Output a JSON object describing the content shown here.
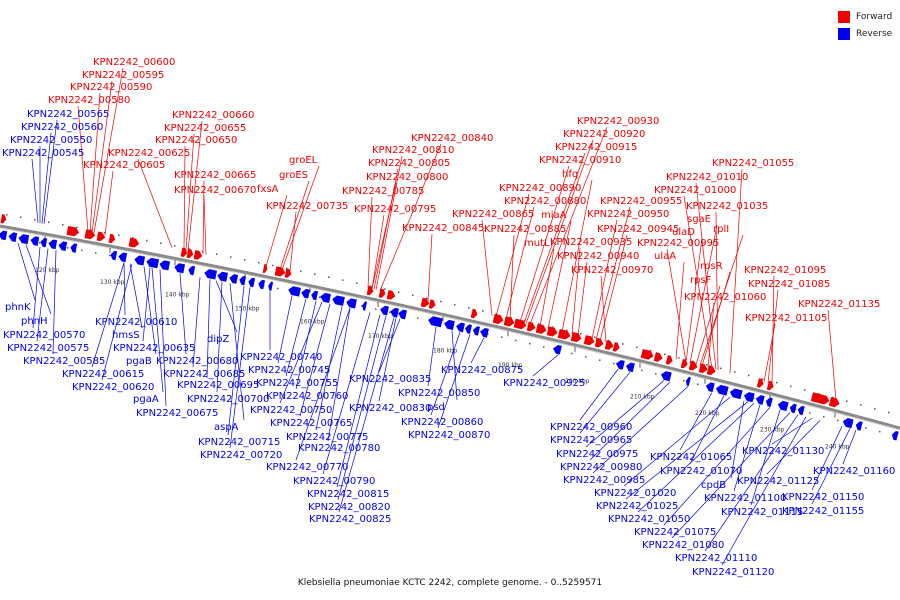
{
  "legend": [
    {
      "label": "Forward",
      "color": "#ee0000"
    },
    {
      "label": "Reverse",
      "color": "#0000ee"
    }
  ],
  "caption": "Klebsiella pneumoniae KCTC 2242, complete genome. - 0..5259571",
  "colors": {
    "forward": "#ee0000",
    "reverse": "#0000ee",
    "backbone": "#8a8a8a"
  },
  "ticks": [
    "120 kbp",
    "130 kbp",
    "140 kbp",
    "150 kbp",
    "160 kbp",
    "170 kbp",
    "180 kbp",
    "190 kbp",
    "200 kbp",
    "210 kbp",
    "220 kbp",
    "230 kbp",
    "240 kbp"
  ],
  "forward_labels": [
    "KPN2242_00600",
    "KPN2242_00595",
    "KPN2242_00590",
    "KPN2242_00580",
    "KPN2242_00660",
    "KPN2242_00655",
    "KPN2242_00650",
    "KPN2242_00625",
    "KPN2242_00605",
    "KPN2242_00665",
    "KPN2242_00670",
    "fxsA",
    "groEL",
    "groES",
    "KPN2242_00735",
    "KPN2242_00840",
    "KPN2242_00810",
    "KPN2242_00805",
    "KPN2242_00800",
    "KPN2242_00785",
    "KPN2242_00795",
    "KPN2242_00845",
    "KPN2242_00930",
    "KPN2242_00920",
    "KPN2242_00915",
    "KPN2242_00910",
    "hfq",
    "KPN2242_00890",
    "KPN2242_00880",
    "miaA",
    "KPN2242_00865",
    "KPN2242_00885",
    "mutL",
    "KPN2242_00955",
    "KPN2242_00950",
    "KPN2242_00945",
    "KPN2242_00935",
    "KPN2242_00940",
    "KPN2242_00970",
    "KPN2242_01055",
    "KPN2242_01010",
    "KPN2242_01000",
    "KPN2242_01035",
    "sgaE",
    "ulaD",
    "rplI",
    "KPN2242_00995",
    "ulaA",
    "rpsR",
    "rpsF",
    "KPN2242_01060",
    "KPN2242_01095",
    "KPN2242_01085",
    "KPN2242_01135",
    "KPN2242_01105"
  ],
  "reverse_labels": [
    "KPN2242_00565",
    "KPN2242_00560",
    "KPN2242_00550",
    "KPN2242_00545",
    "phnK",
    "phnH",
    "KPN2242_00570",
    "KPN2242_00575",
    "KPN2242_00585",
    "KPN2242_00610",
    "hmsS",
    "KPN2242_00635",
    "pgaB",
    "KPN2242_00615",
    "KPN2242_00620",
    "pgaA",
    "KPN2242_00675",
    "dipZ",
    "KPN2242_00680",
    "KPN2242_00685",
    "KPN2242_00695",
    "KPN2242_00700",
    "aspA",
    "KPN2242_00715",
    "KPN2242_00720",
    "KPN2242_00740",
    "KPN2242_00745",
    "KPN2242_00755",
    "KPN2242_00760",
    "KPN2242_00750",
    "KPN2242_00765",
    "KPN2242_00775",
    "KPN2242_00780",
    "KPN2242_00770",
    "KPN2242_00790",
    "KPN2242_00815",
    "KPN2242_00820",
    "KPN2242_00825",
    "KPN2242_00835",
    "KPN2242_00830",
    "KPN2242_00850",
    "psd",
    "KPN2242_00860",
    "KPN2242_00870",
    "KPN2242_00875",
    "KPN2242_00925",
    "KPN2242_00960",
    "KPN2242_00965",
    "KPN2242_00975",
    "KPN2242_00980",
    "KPN2242_00985",
    "KPN2242_01065",
    "KPN2242_01070",
    "KPN2242_01020",
    "cpdB",
    "KPN2242_01025",
    "KPN2242_01050",
    "KPN2242_01100",
    "KPN2242_01075",
    "KPN2242_01115",
    "KPN2242_01080",
    "KPN2242_01110",
    "KPN2242_01120",
    "KPN2242_01130",
    "KPN2242_01125",
    "KPN2242_01150",
    "KPN2242_01155",
    "KPN2242_01160"
  ]
}
